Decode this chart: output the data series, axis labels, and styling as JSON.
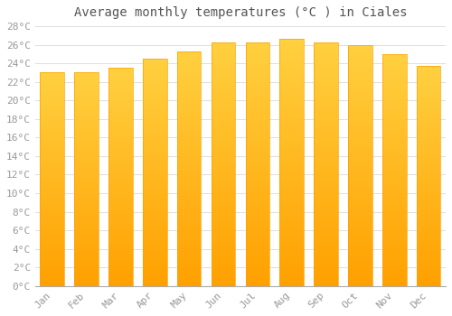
{
  "title": "Average monthly temperatures (°C ) in Ciales",
  "months": [
    "Jan",
    "Feb",
    "Mar",
    "Apr",
    "May",
    "Jun",
    "Jul",
    "Aug",
    "Sep",
    "Oct",
    "Nov",
    "Dec"
  ],
  "values": [
    23.0,
    23.0,
    23.5,
    24.5,
    25.3,
    26.3,
    26.3,
    26.6,
    26.3,
    26.0,
    25.0,
    23.7
  ],
  "bar_color_top": "#FFD040",
  "bar_color_bottom": "#FFA000",
  "background_color": "#ffffff",
  "grid_color": "#dddddd",
  "ylim": [
    0,
    28
  ],
  "title_fontsize": 10,
  "tick_fontsize": 8,
  "font_family": "monospace",
  "label_color": "#999999",
  "title_color": "#555555"
}
